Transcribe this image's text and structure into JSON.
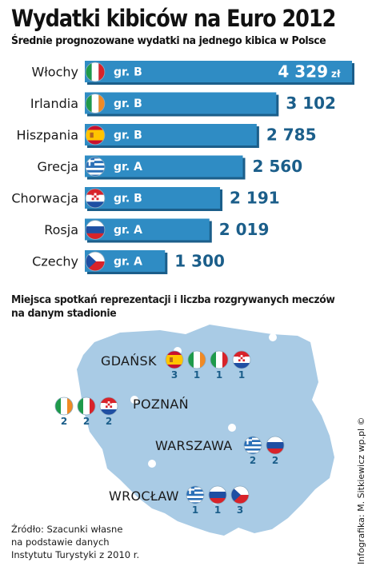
{
  "title": "Wydatki kibiców na Euro 2012",
  "subtitle": "Średnie prognozowane wydatki na jednego kibica w Polsce",
  "chart_data": {
    "type": "bar",
    "title": "Wydatki kibiców na Euro 2012",
    "subtitle": "Średnie prognozowane wydatki na jednego kibica w Polsce",
    "orientation": "horizontal",
    "categories": [
      "Włochy",
      "Irlandia",
      "Hiszpania",
      "Grecja",
      "Chorwacja",
      "Rosja",
      "Czechy"
    ],
    "values": [
      4329,
      3102,
      2785,
      2560,
      2191,
      2019,
      1300
    ],
    "value_labels": [
      "4 329",
      "3 102",
      "2 785",
      "2 560",
      "2 191",
      "2 019",
      "1 300"
    ],
    "unit": "zł",
    "groups": [
      "gr. B",
      "gr. B",
      "gr. B",
      "gr. A",
      "gr. B",
      "gr. A",
      "gr. A"
    ],
    "flags": [
      "italy",
      "ireland",
      "spain",
      "greece",
      "croatia",
      "russia",
      "czech"
    ],
    "bar_color": "#2f8cc4",
    "bar_shadow_color": "#1b5e8a"
  },
  "section_title": "Miejsca spotkań reprezentacji i liczba rozgrywanych meczów na danym stadionie",
  "stadiums": [
    {
      "name": "GDAŃSK",
      "teams": [
        {
          "flag": "spain",
          "matches": "3"
        },
        {
          "flag": "ireland",
          "matches": "1"
        },
        {
          "flag": "italy",
          "matches": "1"
        },
        {
          "flag": "croatia",
          "matches": "1"
        }
      ]
    },
    {
      "name": "POZNAŃ",
      "teams": [
        {
          "flag": "ireland",
          "matches": "2"
        },
        {
          "flag": "italy",
          "matches": "2"
        },
        {
          "flag": "croatia",
          "matches": "2"
        }
      ]
    },
    {
      "name": "WARSZAWA",
      "teams": [
        {
          "flag": "greece",
          "matches": "2"
        },
        {
          "flag": "russia",
          "matches": "2"
        }
      ]
    },
    {
      "name": "WROCŁAW",
      "teams": [
        {
          "flag": "greece",
          "matches": "1"
        },
        {
          "flag": "russia",
          "matches": "1"
        },
        {
          "flag": "czech",
          "matches": "3"
        }
      ]
    }
  ],
  "source": {
    "line1": "Źródło: Szacunki własne",
    "line2": "na podstawie danych",
    "line3": "Instytutu Turystyki z 2010 r."
  },
  "credit": "Infografika: M. Sitkiewicz wp.pl ©",
  "colors": {
    "map_fill": "#a9cbe5",
    "city_dot": "#ffffff",
    "count_color": "#1b5e8a"
  }
}
